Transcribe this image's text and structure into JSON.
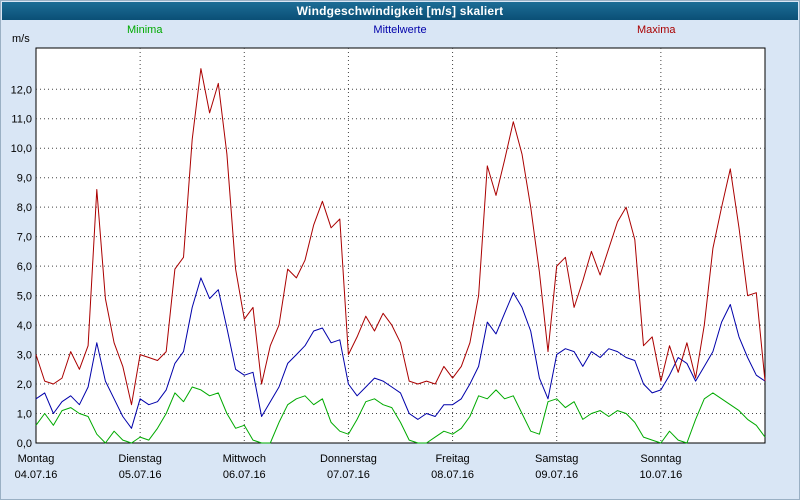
{
  "window": {
    "title": "Windgeschwindigkeit [m/s] skaliert"
  },
  "legend": [
    {
      "label": "Minima",
      "color": "#00aa00"
    },
    {
      "label": "Mittelwerte",
      "color": "#0000aa"
    },
    {
      "label": "Maxima",
      "color": "#aa0000"
    }
  ],
  "y_axis": {
    "unit": "m/s",
    "tick_labels": [
      "0,0",
      "1,0",
      "2,0",
      "3,0",
      "4,0",
      "5,0",
      "6,0",
      "7,0",
      "8,0",
      "9,0",
      "10,0",
      "11,0",
      "12,0"
    ]
  },
  "x_axis": {
    "days": [
      {
        "day": "Montag",
        "date": "04.07.16"
      },
      {
        "day": "Dienstag",
        "date": "05.07.16"
      },
      {
        "day": "Mittwoch",
        "date": "06.07.16"
      },
      {
        "day": "Donnerstag",
        "date": "07.07.16"
      },
      {
        "day": "Freitag",
        "date": "08.07.16"
      },
      {
        "day": "Samstag",
        "date": "09.07.16"
      },
      {
        "day": "Sonntag",
        "date": "10.07.16"
      }
    ]
  },
  "chart_data": {
    "type": "line",
    "title": "Windgeschwindigkeit [m/s] skaliert",
    "ylabel": "m/s",
    "ylim": [
      0,
      13.4
    ],
    "x_unit": "hours",
    "x_step_hours": 2,
    "x_range_hours": [
      0,
      168
    ],
    "grid": true,
    "legend_position": "top",
    "series": [
      {
        "name": "Minima",
        "color": "#00aa00",
        "values": [
          0.6,
          1.0,
          0.6,
          1.1,
          1.2,
          1.0,
          0.9,
          0.3,
          0.0,
          0.4,
          0.1,
          0.0,
          0.2,
          0.1,
          0.5,
          1.0,
          1.7,
          1.4,
          1.9,
          1.8,
          1.6,
          1.7,
          1.0,
          0.5,
          0.6,
          0.1,
          0.0,
          0.0,
          0.7,
          1.3,
          1.5,
          1.6,
          1.3,
          1.5,
          0.7,
          0.4,
          0.3,
          0.8,
          1.4,
          1.5,
          1.3,
          1.2,
          0.7,
          0.1,
          0.0,
          0.0,
          0.2,
          0.4,
          0.3,
          0.5,
          0.9,
          1.6,
          1.5,
          1.8,
          1.5,
          1.6,
          1.0,
          0.4,
          0.3,
          1.4,
          1.5,
          1.2,
          1.4,
          0.8,
          1.0,
          1.1,
          0.9,
          1.1,
          1.0,
          0.7,
          0.2,
          0.1,
          0.0,
          0.4,
          0.1,
          0.0,
          0.8,
          1.5,
          1.7,
          1.5,
          1.3,
          1.1,
          0.8,
          0.6,
          0.2
        ]
      },
      {
        "name": "Mittelwerte",
        "color": "#0000aa",
        "values": [
          1.5,
          1.7,
          1.0,
          1.4,
          1.6,
          1.3,
          1.9,
          3.4,
          2.1,
          1.5,
          0.9,
          0.5,
          1.5,
          1.3,
          1.4,
          1.8,
          2.7,
          3.1,
          4.6,
          5.6,
          4.9,
          5.2,
          3.9,
          2.5,
          2.3,
          2.4,
          0.9,
          1.4,
          1.9,
          2.7,
          3.0,
          3.3,
          3.8,
          3.9,
          3.4,
          3.5,
          2.0,
          1.6,
          1.9,
          2.2,
          2.1,
          1.9,
          1.7,
          1.0,
          0.8,
          1.0,
          0.9,
          1.3,
          1.3,
          1.5,
          2.0,
          2.6,
          4.1,
          3.7,
          4.4,
          5.1,
          4.6,
          3.8,
          2.2,
          1.5,
          3.0,
          3.2,
          3.1,
          2.6,
          3.1,
          2.9,
          3.2,
          3.1,
          2.9,
          2.8,
          2.0,
          1.7,
          1.8,
          2.3,
          2.9,
          2.7,
          2.1,
          2.6,
          3.1,
          4.1,
          4.7,
          3.6,
          2.9,
          2.3,
          2.1
        ]
      },
      {
        "name": "Maxima",
        "color": "#aa0000",
        "values": [
          3.0,
          2.1,
          2.0,
          2.2,
          3.1,
          2.5,
          3.3,
          8.6,
          4.9,
          3.4,
          2.6,
          1.3,
          3.0,
          2.9,
          2.8,
          3.1,
          5.9,
          6.3,
          10.3,
          12.7,
          11.2,
          12.2,
          9.8,
          5.9,
          4.2,
          4.6,
          2.0,
          3.3,
          4.0,
          5.9,
          5.6,
          6.2,
          7.4,
          8.2,
          7.3,
          7.6,
          3.0,
          3.6,
          4.3,
          3.8,
          4.4,
          4.0,
          3.4,
          2.1,
          2.0,
          2.1,
          2.0,
          2.6,
          2.2,
          2.6,
          3.4,
          5.0,
          9.4,
          8.4,
          9.6,
          10.9,
          9.8,
          8.0,
          5.8,
          3.1,
          6.0,
          6.3,
          4.6,
          5.5,
          6.5,
          5.7,
          6.6,
          7.5,
          8.0,
          6.9,
          3.3,
          3.6,
          2.1,
          3.3,
          2.4,
          3.4,
          2.2,
          4.0,
          6.6,
          8.0,
          9.3,
          7.3,
          5.0,
          5.1,
          2.1
        ]
      }
    ]
  }
}
